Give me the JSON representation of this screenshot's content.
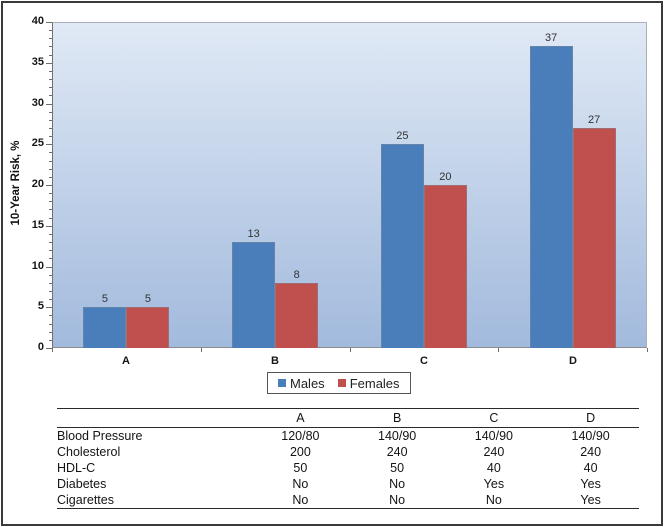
{
  "chart_data": {
    "type": "bar",
    "categories": [
      "A",
      "B",
      "C",
      "D"
    ],
    "series": [
      {
        "name": "Males",
        "color": "#4a7ebb",
        "values": [
          5,
          13,
          25,
          37
        ]
      },
      {
        "name": "Females",
        "color": "#c0504d",
        "values": [
          5,
          8,
          20,
          27
        ]
      }
    ],
    "ylabel": "10-Year Risk, %",
    "ylim": [
      0,
      40
    ],
    "ytick_step": 5,
    "yminor_step": 1,
    "grid": false,
    "data_labels": true,
    "legend_position": "bottom-center",
    "plot_background": {
      "top": "#e0e9f5",
      "bottom": "#a2badd"
    }
  },
  "table": {
    "header": [
      "",
      "A",
      "B",
      "C",
      "D"
    ],
    "rows": [
      {
        "label": "Blood Pressure",
        "values": [
          "120/80",
          "140/90",
          "140/90",
          "140/90"
        ]
      },
      {
        "label": "Cholesterol",
        "values": [
          "200",
          "240",
          "240",
          "240"
        ]
      },
      {
        "label": "HDL-C",
        "values": [
          "50",
          "50",
          "40",
          "40"
        ]
      },
      {
        "label": "Diabetes",
        "values": [
          "No",
          "No",
          "Yes",
          "Yes"
        ]
      },
      {
        "label": "Cigarettes",
        "values": [
          "No",
          "No",
          "No",
          "Yes"
        ]
      }
    ]
  }
}
